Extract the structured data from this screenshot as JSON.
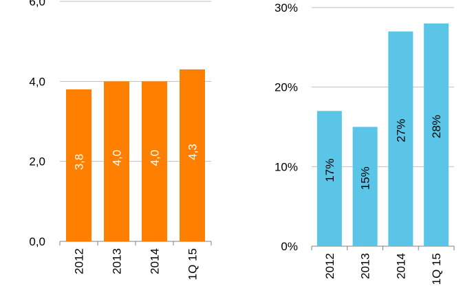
{
  "chart_data": [
    {
      "type": "bar",
      "categories": [
        "2012",
        "2013",
        "2014",
        "1Q 15"
      ],
      "values": [
        3.8,
        4.0,
        4.0,
        4.3
      ],
      "data_labels": [
        "3,8",
        "4,0",
        "4,0",
        "4,3"
      ],
      "ylim": [
        0,
        6
      ],
      "yticks": [
        0,
        2,
        4,
        6
      ],
      "ytick_labels": [
        "0,0",
        "2,0",
        "4,0",
        "6,0"
      ],
      "grid": true,
      "color": "#FF8000"
    },
    {
      "type": "bar",
      "categories": [
        "2012",
        "2013",
        "2014",
        "1Q 15"
      ],
      "values": [
        17,
        15,
        27,
        28
      ],
      "data_labels": [
        "17%",
        "15%",
        "27%",
        "28%"
      ],
      "ylim": [
        0,
        30
      ],
      "yticks": [
        0,
        10,
        20,
        30
      ],
      "ytick_labels": [
        "0%",
        "10%",
        "20%",
        "30%"
      ],
      "grid": true,
      "color": "#5BC5E8"
    }
  ]
}
